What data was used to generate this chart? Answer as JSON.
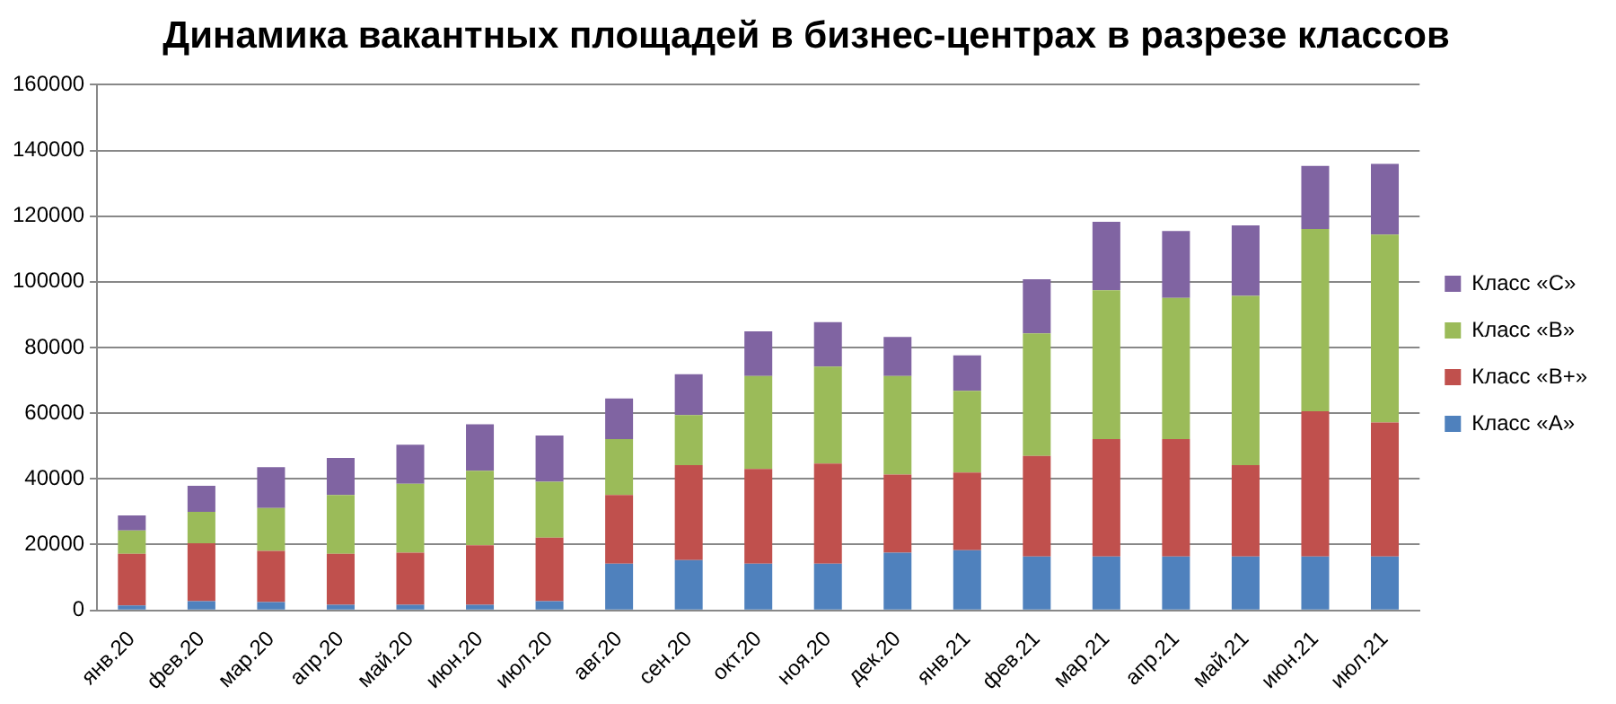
{
  "chart_data": {
    "type": "bar",
    "stacked": true,
    "title": "Динамика вакантных площадей в бизнес-центрах в разрезе классов",
    "categories": [
      "янв.20",
      "фев.20",
      "мар.20",
      "апр.20",
      "май.20",
      "июн.20",
      "июл.20",
      "авг.20",
      "сен.20",
      "окт.20",
      "ноя.20",
      "дек.20",
      "янв.21",
      "фев.21",
      "мар.21",
      "апр.21",
      "май.21",
      "июн.21",
      "июл.21"
    ],
    "series": [
      {
        "name": "Класс «А»",
        "color": "#4f81bd",
        "values": [
          1500,
          2800,
          2500,
          1700,
          1700,
          1700,
          2800,
          14200,
          15300,
          14200,
          14200,
          17500,
          18300,
          16400,
          16400,
          16400,
          16400,
          16400,
          16400
        ]
      },
      {
        "name": "Класс «В+»",
        "color": "#c0504d",
        "values": [
          15700,
          17600,
          15600,
          15500,
          15800,
          18100,
          19300,
          20900,
          28900,
          28800,
          30500,
          23800,
          23600,
          30600,
          35700,
          35700,
          27800,
          44200,
          40800
        ]
      },
      {
        "name": "Класс «В»",
        "color": "#9bbb59",
        "values": [
          7100,
          9600,
          13000,
          17900,
          21000,
          22700,
          17000,
          17000,
          15200,
          28300,
          29500,
          30000,
          24900,
          37300,
          45300,
          43000,
          51500,
          55500,
          57200
        ]
      },
      {
        "name": "Класс «С»",
        "color": "#8064a2",
        "values": [
          4600,
          7900,
          12500,
          11300,
          11900,
          14100,
          14100,
          12400,
          12500,
          13600,
          13500,
          11900,
          10800,
          16500,
          20900,
          20400,
          21500,
          19200,
          21500
        ]
      }
    ],
    "ylim": [
      0,
      160000
    ],
    "yticks": [
      0,
      20000,
      40000,
      60000,
      80000,
      100000,
      120000,
      140000,
      160000
    ],
    "grid": "y",
    "legend": "right"
  }
}
